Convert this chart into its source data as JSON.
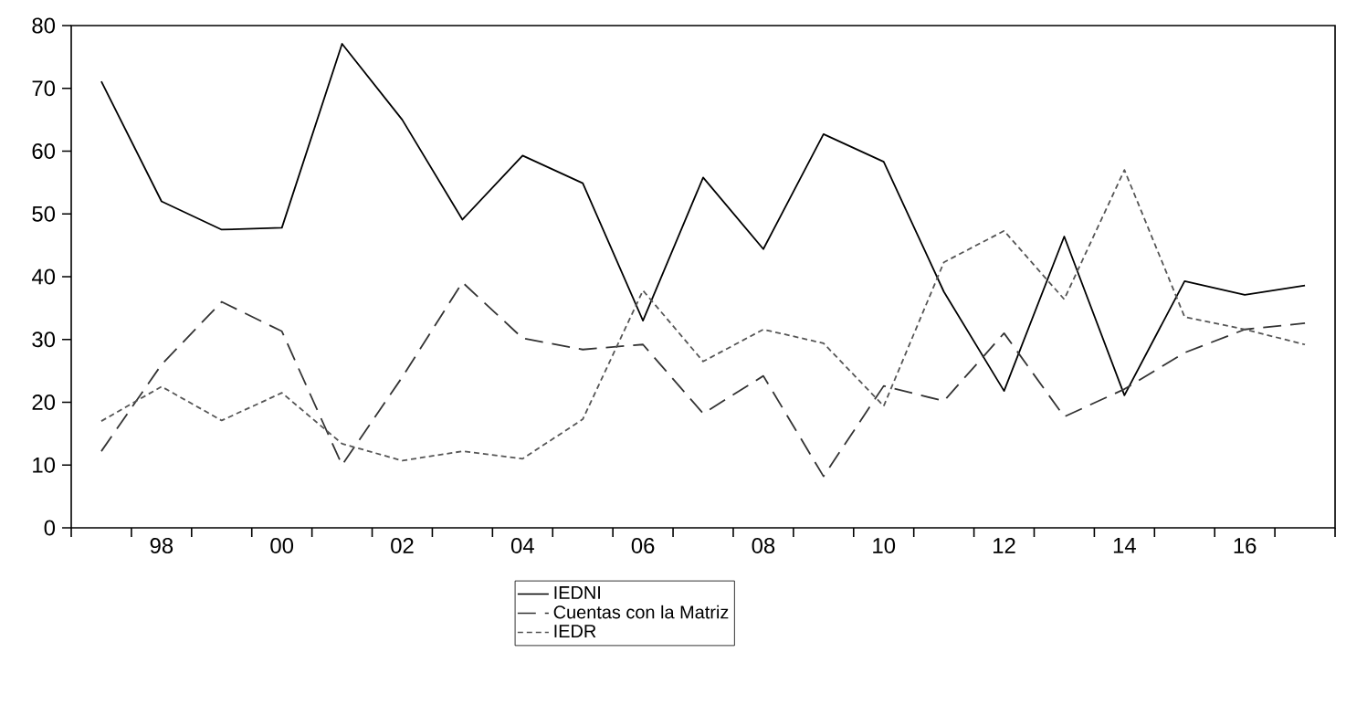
{
  "chart_data": {
    "type": "line",
    "x": [
      1997,
      1998,
      1999,
      2000,
      2001,
      2002,
      2003,
      2004,
      2005,
      2006,
      2007,
      2008,
      2009,
      2010,
      2011,
      2012,
      2013,
      2014,
      2015,
      2016,
      2017
    ],
    "series": [
      {
        "name": "IEDNI",
        "color": "#000000",
        "line_style": "solid",
        "values": [
          71.1,
          52,
          47.5,
          47.8,
          77.1,
          65,
          49.1,
          59.3,
          54.9,
          33,
          55.8,
          44.4,
          62.7,
          58.3,
          37.6,
          21.8,
          46.4,
          21.1,
          39.3,
          37.1,
          38.6
        ]
      },
      {
        "name": "Cuentas con la Matriz",
        "color": "#333333",
        "line_style": "dashed",
        "values": [
          12.2,
          26,
          36,
          31.3,
          10,
          24,
          39.1,
          30.2,
          28.4,
          29.2,
          18.2,
          24.2,
          8.2,
          22.6,
          20.2,
          31,
          17.7,
          22.1,
          27.9,
          31.6,
          32.6
        ]
      },
      {
        "name": "IEDR",
        "color": "#555555",
        "line_style": "dotted",
        "values": [
          17,
          22.5,
          17.1,
          21.5,
          13.4,
          10.7,
          12.2,
          11,
          17.3,
          37.8,
          26.5,
          31.6,
          29.4,
          19.4,
          42.3,
          47.3,
          36.4,
          57,
          33.6,
          31.6,
          29.2
        ]
      }
    ],
    "xlim": [
      1996.5,
      2017.5
    ],
    "xticks": [
      {
        "value": 1996.5,
        "label": null
      },
      {
        "value": 1997.5,
        "label": null
      },
      {
        "value": 1998,
        "label": "98"
      },
      {
        "value": 1998.5,
        "label": null
      },
      {
        "value": 1999.5,
        "label": null
      },
      {
        "value": 2000,
        "label": "00"
      },
      {
        "value": 2000.5,
        "label": null
      },
      {
        "value": 2001.5,
        "label": null
      },
      {
        "value": 2002,
        "label": "02"
      },
      {
        "value": 2002.5,
        "label": null
      },
      {
        "value": 2003.5,
        "label": null
      },
      {
        "value": 2004,
        "label": "04"
      },
      {
        "value": 2004.5,
        "label": null
      },
      {
        "value": 2005.5,
        "label": null
      },
      {
        "value": 2006,
        "label": "06"
      },
      {
        "value": 2006.5,
        "label": null
      },
      {
        "value": 2007.5,
        "label": null
      },
      {
        "value": 2008,
        "label": "08"
      },
      {
        "value": 2008.5,
        "label": null
      },
      {
        "value": 2009.5,
        "label": null
      },
      {
        "value": 2010,
        "label": "10"
      },
      {
        "value": 2010.5,
        "label": null
      },
      {
        "value": 2011.5,
        "label": null
      },
      {
        "value": 2012,
        "label": "12"
      },
      {
        "value": 2012.5,
        "label": null
      },
      {
        "value": 2013.5,
        "label": null
      },
      {
        "value": 2014,
        "label": "14"
      },
      {
        "value": 2014.5,
        "label": null
      },
      {
        "value": 2015.5,
        "label": null
      },
      {
        "value": 2016,
        "label": "16"
      },
      {
        "value": 2016.5,
        "label": null
      },
      {
        "value": 2017.5,
        "label": null
      }
    ],
    "ylim": [
      0,
      80
    ],
    "yticks": [
      0,
      10,
      20,
      30,
      40,
      50,
      60,
      70,
      80
    ],
    "grid": false,
    "legend": "bottom",
    "marker": "none"
  }
}
